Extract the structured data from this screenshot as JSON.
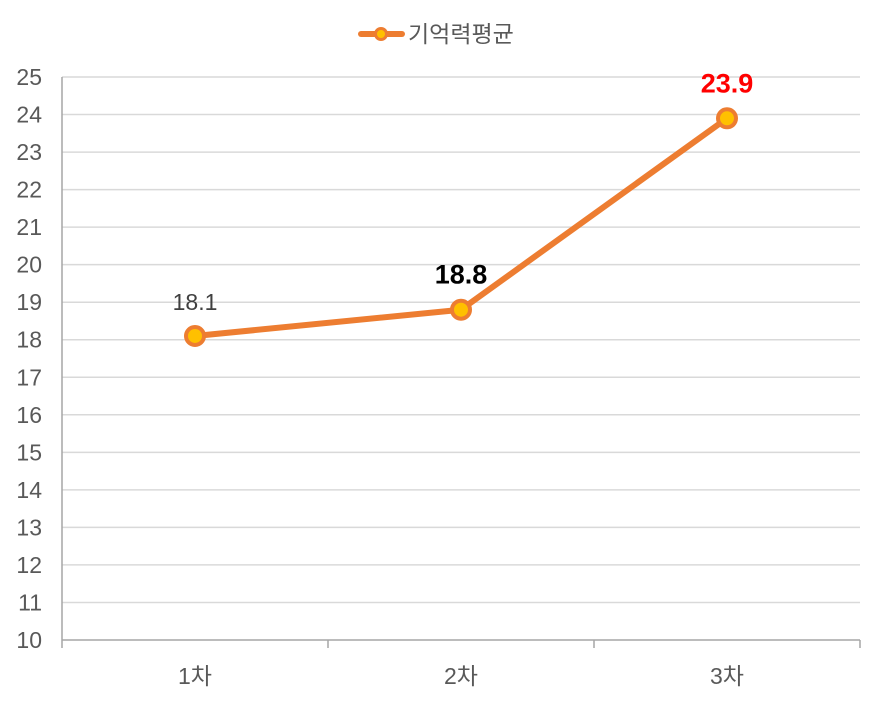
{
  "chart_data": {
    "type": "line",
    "title": "",
    "xlabel": "",
    "ylabel": "",
    "categories": [
      "1차",
      "2차",
      "3차"
    ],
    "series": [
      {
        "name": "기억력평균",
        "values": [
          18.1,
          18.8,
          23.9
        ],
        "color": "#ED7D31",
        "marker_fill": "#FFC000"
      }
    ],
    "data_labels": [
      {
        "text": "18.1",
        "color": "#404040",
        "bold": false
      },
      {
        "text": "18.8",
        "color": "#000000",
        "bold": true
      },
      {
        "text": "23.9",
        "color": "#FF0000",
        "bold": true
      }
    ],
    "ylim": [
      10,
      25
    ],
    "ytick_step": 1,
    "grid": true,
    "grid_color": "#D9D9D9",
    "axis_color": "#A6A6A6",
    "legend_position": "top-center"
  }
}
